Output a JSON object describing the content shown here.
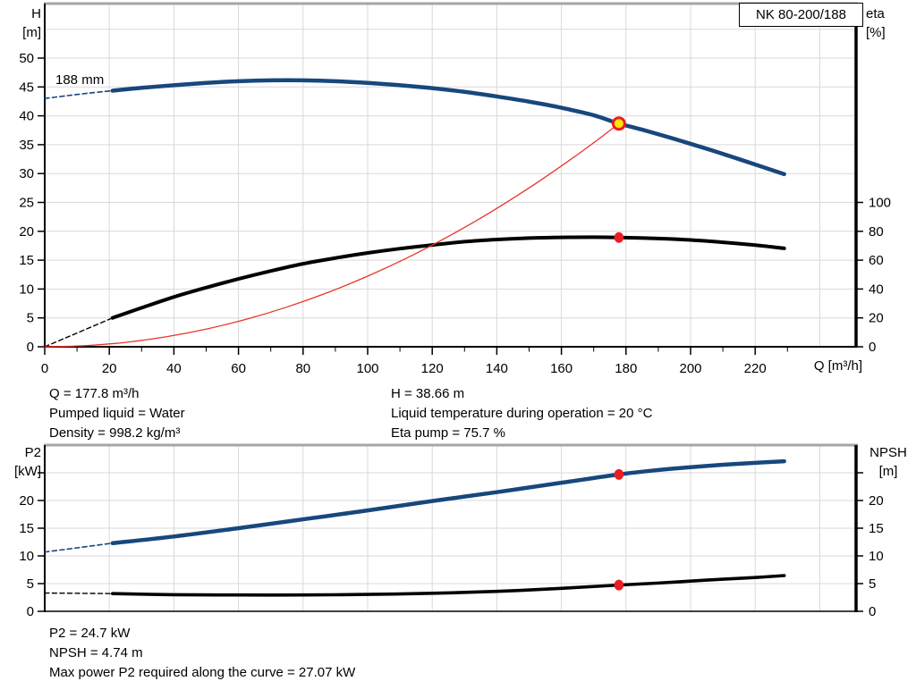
{
  "model_box": "NK 80-200/188",
  "colors": {
    "blue": "#17477d",
    "black": "#000000",
    "red": "#e8352a",
    "marker_red": "#ec1c24",
    "marker_yellow": "#ffe600",
    "grid": "#d9d9d9",
    "panel_border_gray": "#a6a6a6"
  },
  "annotations": {
    "col1": [
      "Q = 177.8 m³/h",
      "Pumped liquid = Water",
      "Density = 998.2 kg/m³"
    ],
    "col2": [
      "H = 38.66 m",
      "Liquid temperature during operation = 20 °C",
      "Eta pump = 75.7 %"
    ],
    "bottom": [
      "P2 = 24.7 kW",
      "NPSH = 4.74 m",
      "Max power P2 required along the curve = 27.07 kW"
    ]
  },
  "chart_data": [
    {
      "type": "line",
      "panel": "top",
      "title": "NK 80-200/188",
      "curve_label": "188 mm",
      "xlabel": "Q [m³/h]",
      "ylabel_left_lines": [
        "H",
        "[m]"
      ],
      "ylabel_right_lines": [
        "eta",
        "[%]"
      ],
      "xlim": [
        0,
        251
      ],
      "ylim_left": [
        0,
        59.5
      ],
      "ylim_right": [
        0,
        100
      ],
      "grid": true,
      "x_major_ticks": [
        0,
        20,
        40,
        60,
        80,
        100,
        120,
        140,
        160,
        180,
        200,
        220
      ],
      "x_minor_ticks": [
        10,
        30,
        50,
        70,
        90,
        110,
        130,
        150,
        170,
        190,
        210,
        230
      ],
      "x_gridlines": [
        20,
        40,
        60,
        80,
        100,
        120,
        140,
        160,
        180,
        200,
        220,
        240
      ],
      "y_left_ticks": [
        0,
        5,
        10,
        15,
        20,
        25,
        30,
        35,
        40,
        45,
        50
      ],
      "y_left_unlabeled_ticks": [],
      "y_gridlines": [
        5,
        10,
        15,
        20,
        25,
        30,
        35,
        40,
        45,
        50,
        55
      ],
      "y_right_ticks": [
        0,
        20,
        40,
        60,
        80,
        100
      ],
      "y_right_unlabeled_ticks": [],
      "series": [
        {
          "name": "head-curve-extrapolated",
          "axis": "left",
          "color_key": "blue",
          "dashed": true,
          "width": 1.6,
          "points": [
            [
              0,
              43.0
            ],
            [
              7,
              43.5
            ],
            [
              14,
              43.95
            ],
            [
              21,
              44.35
            ]
          ]
        },
        {
          "name": "head-curve",
          "axis": "left",
          "color_key": "blue",
          "dashed": false,
          "width": 4.5,
          "points": [
            [
              21,
              44.35
            ],
            [
              30,
              44.85
            ],
            [
              40,
              45.3
            ],
            [
              50,
              45.7
            ],
            [
              60,
              46.0
            ],
            [
              70,
              46.15
            ],
            [
              80,
              46.15
            ],
            [
              90,
              46.0
            ],
            [
              100,
              45.7
            ],
            [
              110,
              45.3
            ],
            [
              120,
              44.8
            ],
            [
              130,
              44.15
            ],
            [
              140,
              43.35
            ],
            [
              150,
              42.45
            ],
            [
              160,
              41.4
            ],
            [
              170,
              40.1
            ],
            [
              177.8,
              38.66
            ],
            [
              185,
              37.6
            ],
            [
              195,
              36.0
            ],
            [
              205,
              34.3
            ],
            [
              215,
              32.5
            ],
            [
              229,
              29.9
            ]
          ]
        },
        {
          "name": "efficiency-curve-extrapolated",
          "axis": "right",
          "color_key": "black",
          "dashed": true,
          "width": 1.4,
          "points": [
            [
              0,
              0
            ],
            [
              21,
              20
            ]
          ]
        },
        {
          "name": "efficiency-curve",
          "axis": "right",
          "color_key": "black",
          "dashed": false,
          "width": 4,
          "points": [
            [
              21,
              20
            ],
            [
              30,
              27
            ],
            [
              40,
              34.5
            ],
            [
              50,
              41
            ],
            [
              60,
              47
            ],
            [
              70,
              52.5
            ],
            [
              80,
              57.5
            ],
            [
              90,
              61.5
            ],
            [
              100,
              65
            ],
            [
              110,
              68
            ],
            [
              120,
              70.5
            ],
            [
              130,
              72.8
            ],
            [
              140,
              74.3
            ],
            [
              150,
              75.3
            ],
            [
              160,
              75.8
            ],
            [
              170,
              75.9
            ],
            [
              177.8,
              75.7
            ],
            [
              190,
              75.0
            ],
            [
              200,
              74.0
            ],
            [
              210,
              72.4
            ],
            [
              220,
              70.4
            ],
            [
              229,
              68.2
            ]
          ]
        },
        {
          "name": "system-curve",
          "axis": "left",
          "color_key": "red",
          "dashed": false,
          "width": 1.3,
          "points": [
            [
              0,
              0
            ],
            [
              12.5,
              0.19
            ],
            [
              25,
              0.76
            ],
            [
              37.5,
              1.72
            ],
            [
              50,
              3.06
            ],
            [
              62.5,
              4.78
            ],
            [
              75,
              6.88
            ],
            [
              87.5,
              9.36
            ],
            [
              100,
              12.23
            ],
            [
              112.5,
              15.47
            ],
            [
              125,
              19.11
            ],
            [
              137.5,
              23.12
            ],
            [
              150,
              27.52
            ],
            [
              162.5,
              32.3
            ],
            [
              170,
              35.34
            ],
            [
              177.8,
              38.66
            ]
          ]
        }
      ],
      "markers": [
        {
          "name": "duty-point-head",
          "x": 177.8,
          "y": 38.66,
          "axis": "left",
          "style": "yellow-ring"
        },
        {
          "name": "duty-point-efficiency",
          "x": 177.8,
          "y": 75.7,
          "axis": "right",
          "style": "red-dot"
        }
      ]
    },
    {
      "type": "line",
      "panel": "bottom",
      "title": "",
      "xlabel": "",
      "ylabel_left_lines": [
        "P2",
        "[kW]"
      ],
      "ylabel_right_lines": [
        "NPSH",
        "[m]"
      ],
      "xlim": [
        0,
        251
      ],
      "ylim_left": [
        0,
        30
      ],
      "ylim_right": [
        0,
        30
      ],
      "grid": true,
      "x_major_ticks": [],
      "x_minor_ticks": [],
      "x_gridlines": [
        20,
        40,
        60,
        80,
        100,
        120,
        140,
        160,
        180,
        200,
        220,
        240
      ],
      "y_left_ticks": [
        0,
        5,
        10,
        15,
        20
      ],
      "y_left_unlabeled_ticks": [
        25
      ],
      "y_gridlines": [
        5,
        10,
        15,
        20,
        25
      ],
      "y_right_ticks": [
        0,
        5,
        10,
        15,
        20
      ],
      "y_right_unlabeled_ticks": [
        25
      ],
      "series": [
        {
          "name": "p2-curve-extrapolated",
          "axis": "left",
          "color_key": "blue",
          "dashed": true,
          "width": 1.6,
          "points": [
            [
              0,
              10.7
            ],
            [
              10,
              11.45
            ],
            [
              21,
              12.3
            ]
          ]
        },
        {
          "name": "p2-curve",
          "axis": "left",
          "color_key": "blue",
          "dashed": false,
          "width": 4.5,
          "points": [
            [
              21,
              12.3
            ],
            [
              40,
              13.5
            ],
            [
              60,
              15.0
            ],
            [
              80,
              16.6
            ],
            [
              100,
              18.2
            ],
            [
              120,
              19.9
            ],
            [
              140,
              21.5
            ],
            [
              160,
              23.2
            ],
            [
              177.8,
              24.7
            ],
            [
              190,
              25.5
            ],
            [
              200,
              26.0
            ],
            [
              210,
              26.45
            ],
            [
              220,
              26.8
            ],
            [
              229,
              27.07
            ]
          ]
        },
        {
          "name": "npsh-curve-extrapolated",
          "axis": "right",
          "color_key": "black",
          "dashed": true,
          "width": 1.4,
          "points": [
            [
              0,
              3.3
            ],
            [
              10,
              3.25
            ],
            [
              21,
              3.2
            ]
          ]
        },
        {
          "name": "npsh-curve",
          "axis": "right",
          "color_key": "black",
          "dashed": false,
          "width": 3.6,
          "points": [
            [
              21,
              3.2
            ],
            [
              40,
              3.0
            ],
            [
              60,
              2.95
            ],
            [
              80,
              2.95
            ],
            [
              100,
              3.05
            ],
            [
              120,
              3.25
            ],
            [
              140,
              3.6
            ],
            [
              160,
              4.15
            ],
            [
              177.8,
              4.74
            ],
            [
              190,
              5.1
            ],
            [
              200,
              5.45
            ],
            [
              210,
              5.8
            ],
            [
              220,
              6.1
            ],
            [
              229,
              6.45
            ]
          ]
        }
      ],
      "markers": [
        {
          "name": "duty-point-p2",
          "x": 177.8,
          "y": 24.7,
          "axis": "left",
          "style": "red-dot"
        },
        {
          "name": "duty-point-npsh",
          "x": 177.8,
          "y": 4.74,
          "axis": "right",
          "style": "red-dot"
        }
      ]
    }
  ]
}
